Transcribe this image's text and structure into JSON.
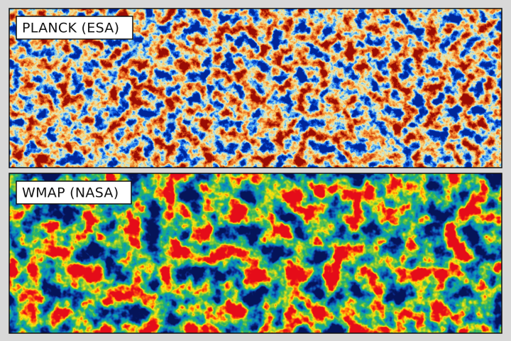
{
  "panels": [
    {
      "label": "PLANCK (ESA)"
    },
    {
      "label": "WMAP (NASA)"
    }
  ]
}
